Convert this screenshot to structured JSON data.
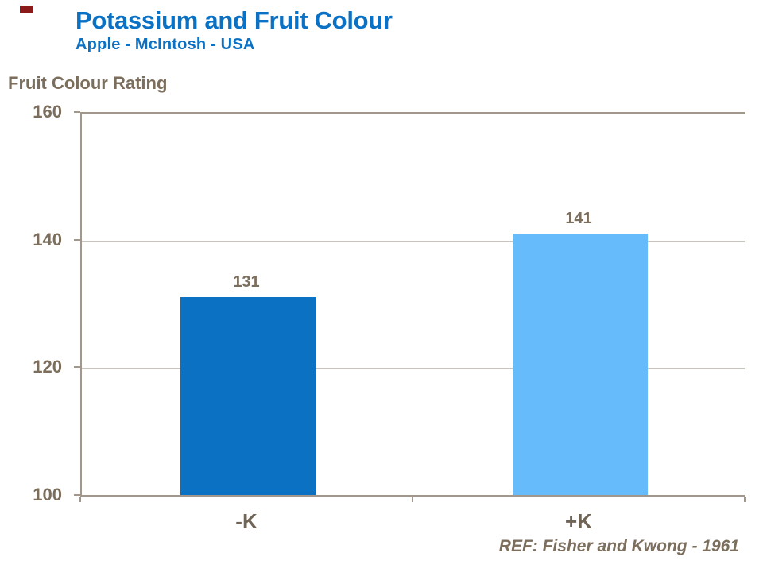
{
  "slide": {
    "title": "Potassium and Fruit Colour",
    "subtitle": "Apple - McIntosh - USA",
    "axis_title": "Fruit Colour Rating",
    "reference": "REF: Fisher and Kwong - 1961"
  },
  "colors": {
    "title_blue": "#0A71C4",
    "text_brown": "#7C6E5D",
    "category_brown": "#6F6455",
    "axis_line": "#A2978A",
    "gridline": "#C7C3BE",
    "bar_dark_blue": "#0B71C2",
    "bar_light_blue": "#66BBFA",
    "accent_red": "#8B1A1A"
  },
  "chart_data": {
    "type": "bar",
    "title": "Potassium and Fruit Colour",
    "subtitle": "Apple - McIntosh - USA",
    "ylabel": "Fruit Colour Rating",
    "xlabel": "",
    "categories": [
      "-K",
      "+K"
    ],
    "values": [
      131,
      141
    ],
    "data_labels": [
      "131",
      "141"
    ],
    "bar_colors": [
      "#0B71C2",
      "#66BBFA"
    ],
    "ylim": [
      100,
      160
    ],
    "yticks": [
      160,
      140,
      120,
      100
    ],
    "grid": true,
    "legend": "none",
    "annotation": "REF: Fisher and Kwong - 1961"
  }
}
